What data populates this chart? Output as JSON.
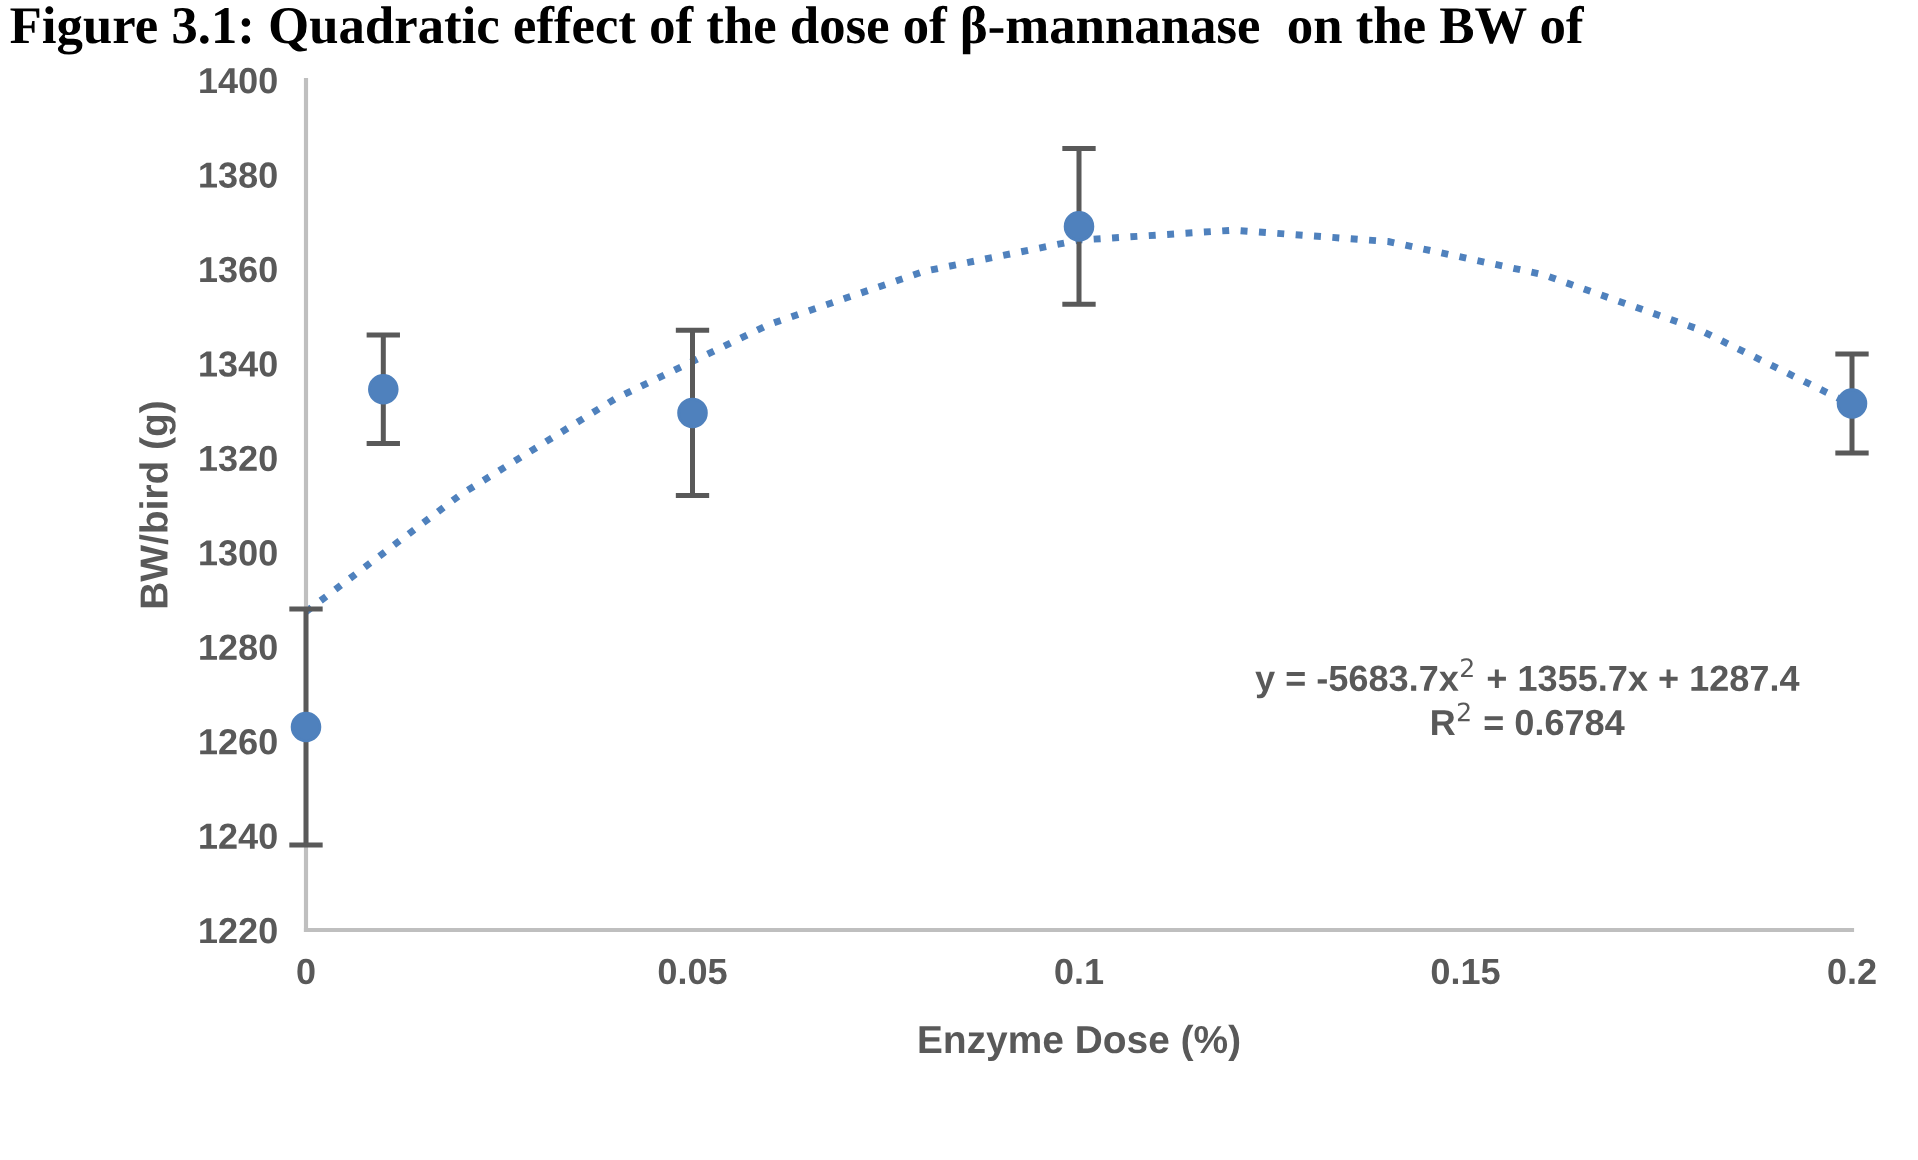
{
  "chart_data": {
    "type": "scatter",
    "title": "Figure 3.1: Quadratic effect of the dose of β-mannanase  on the BW of",
    "xlabel": "Enzyme Dose (%)",
    "ylabel": "BW/bird (g)",
    "series": [
      {
        "color": "#4f81bd",
        "x": [
          0,
          0.01,
          0.05,
          0.1,
          0.2
        ],
        "values": [
          1263,
          1334.5,
          1329.5,
          1369,
          1331.5
        ],
        "errors": [
          25,
          11.5,
          17.5,
          16.5,
          10.5
        ],
        "marker": "circle"
      },
      {
        "type": "line",
        "color": "#4f81bd",
        "line_style": "dotted",
        "x": [
          0,
          0.02,
          0.04,
          0.06,
          0.08,
          0.1,
          0.12,
          0.14,
          0.16,
          0.18,
          0.2
        ],
        "values": [
          1287.4,
          1312.2,
          1332.5,
          1348.3,
          1359.5,
          1366.1,
          1368.2,
          1365.8,
          1358.8,
          1347.3,
          1331.2
        ]
      }
    ],
    "annotations": [
      "y = -5683.7x$^{2}$ + 1355.7x + 1287.4\nR$^{2}$ = 0.6784"
    ],
    "xlim": [
      0,
      0.2
    ],
    "xticks": [
      0,
      0.05,
      0.1,
      0.15,
      0.2
    ],
    "ylim": [
      1220,
      1400
    ],
    "yticks": [
      1220,
      1240,
      1260,
      1280,
      1300,
      1320,
      1340,
      1360,
      1380,
      1400
    ],
    "grid": false,
    "legend": false
  }
}
